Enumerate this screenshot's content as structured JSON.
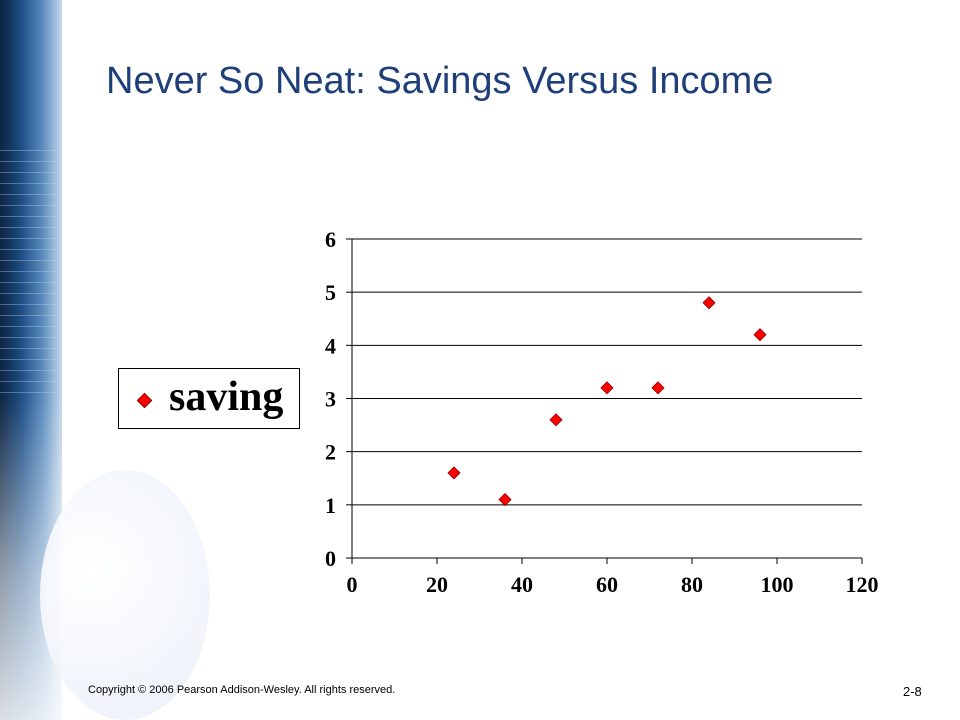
{
  "slide": {
    "title": "Never So Neat: Savings Versus Income",
    "footer": "Copyright © 2006 Pearson Addison-Wesley. All rights reserved.",
    "slide_number": "2-8"
  },
  "chart_data": {
    "type": "scatter",
    "title": "",
    "xlabel": "",
    "ylabel": "",
    "xlim": [
      0,
      120
    ],
    "ylim": [
      0,
      6
    ],
    "x_ticks": [
      0,
      20,
      40,
      60,
      80,
      100,
      120
    ],
    "y_ticks": [
      0,
      1,
      2,
      3,
      4,
      5,
      6
    ],
    "grid": "horizontal",
    "legend_position": "left",
    "series": [
      {
        "name": "saving",
        "marker": "diamond",
        "color": "#ff0000",
        "x": [
          24,
          36,
          48,
          60,
          72,
          84,
          96
        ],
        "y": [
          1.6,
          1.1,
          2.6,
          3.2,
          3.2,
          4.8,
          4.2
        ]
      }
    ]
  }
}
